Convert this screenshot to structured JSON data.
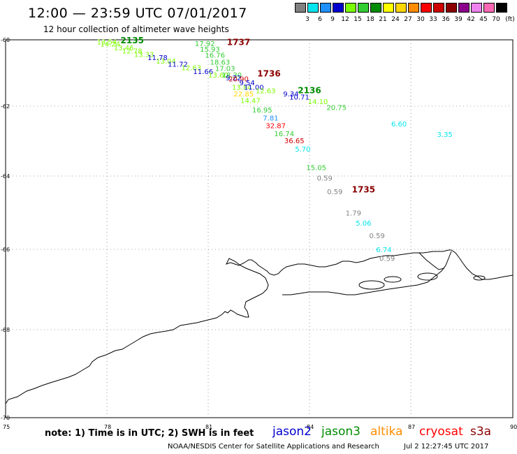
{
  "header": {
    "title": "12:00 — 23:59 UTC 07/01/2017",
    "subtitle": "12 hour collection of altimeter wave heights"
  },
  "scale": {
    "unit": "(ft)",
    "bins": [
      {
        "label": "3",
        "color": "#808080"
      },
      {
        "label": "6",
        "color": "#00e5ee"
      },
      {
        "label": "9",
        "color": "#1e90ff"
      },
      {
        "label": "12",
        "color": "#0000cd"
      },
      {
        "label": "15",
        "color": "#7cfc00"
      },
      {
        "label": "18",
        "color": "#32cd32"
      },
      {
        "label": "21",
        "color": "#008b00"
      },
      {
        "label": "24",
        "color": "#ffff00"
      },
      {
        "label": "27",
        "color": "#ffd700"
      },
      {
        "label": "30",
        "color": "#ff8c00"
      },
      {
        "label": "33",
        "color": "#ff0000"
      },
      {
        "label": "36",
        "color": "#cd0000"
      },
      {
        "label": "39",
        "color": "#8b0000"
      },
      {
        "label": "42",
        "color": "#8b008b"
      },
      {
        "label": "45",
        "color": "#ee82ee"
      },
      {
        "label": "70",
        "color": "#ff69b4"
      },
      {
        "label": "",
        "color": "#000000"
      }
    ]
  },
  "axes": {
    "lon_ticks": [
      "75",
      "78",
      "81",
      "84",
      "87",
      "90"
    ],
    "lat_ticks": [
      "-60",
      "-62",
      "-64",
      "-66",
      "-68",
      "-70"
    ]
  },
  "map_data": {
    "lon_range": [
      75,
      90
    ],
    "lat_range": [
      -60,
      -70
    ],
    "obs": [
      {
        "t": "13.54",
        "c": "#7cfc00",
        "lon": 78.0,
        "lat": -60.05
      },
      {
        "t": "14.24",
        "c": "#7cfc00",
        "lon": 78.1,
        "lat": -60.12
      },
      {
        "t": "13.46",
        "c": "#7cfc00",
        "lon": 78.5,
        "lat": -60.23
      },
      {
        "t": "12.78",
        "c": "#7cfc00",
        "lon": 78.75,
        "lat": -60.33
      },
      {
        "t": "13.33",
        "c": "#7cfc00",
        "lon": 79.1,
        "lat": -60.43
      },
      {
        "t": "11.78",
        "c": "#0000cd",
        "lon": 79.5,
        "lat": -60.53
      },
      {
        "t": "13.04",
        "c": "#7cfc00",
        "lon": 79.75,
        "lat": -60.63
      },
      {
        "t": "11.72",
        "c": "#0000cd",
        "lon": 80.1,
        "lat": -60.73
      },
      {
        "t": "12.63",
        "c": "#7cfc00",
        "lon": 80.5,
        "lat": -60.83
      },
      {
        "t": "11.66",
        "c": "#0000cd",
        "lon": 80.85,
        "lat": -60.95
      },
      {
        "t": "13.60",
        "c": "#7cfc00",
        "lon": 81.3,
        "lat": -61.05
      },
      {
        "t": "17.92",
        "c": "#32cd32",
        "lon": 80.9,
        "lat": -60.1
      },
      {
        "t": "15.93",
        "c": "#32cd32",
        "lon": 81.05,
        "lat": -60.27
      },
      {
        "t": "16.76",
        "c": "#32cd32",
        "lon": 81.2,
        "lat": -60.45
      },
      {
        "t": "18.63",
        "c": "#32cd32",
        "lon": 81.35,
        "lat": -60.66
      },
      {
        "t": "17.03",
        "c": "#32cd32",
        "lon": 81.5,
        "lat": -60.85
      },
      {
        "t": "18.30",
        "c": "#32cd32",
        "lon": 81.7,
        "lat": -61.05
      },
      {
        "t": "9.22",
        "c": "#0000cd",
        "lon": 81.75,
        "lat": -61.14
      },
      {
        "t": "20.90",
        "c": "#cd0000",
        "lon": 81.9,
        "lat": -61.17
      },
      {
        "t": "9.54",
        "c": "#0000cd",
        "lon": 82.15,
        "lat": -61.28
      },
      {
        "t": "13.84",
        "c": "#7cfc00",
        "lon": 82.0,
        "lat": -61.42
      },
      {
        "t": "11.00",
        "c": "#0000cd",
        "lon": 82.35,
        "lat": -61.42
      },
      {
        "t": "12.63",
        "c": "#7cfc00",
        "lon": 82.7,
        "lat": -61.53
      },
      {
        "t": "22.85",
        "c": "#ffd700",
        "lon": 82.05,
        "lat": -61.62
      },
      {
        "t": "9.34",
        "c": "#0000cd",
        "lon": 83.45,
        "lat": -61.62
      },
      {
        "t": "10.71",
        "c": "#0000cd",
        "lon": 83.7,
        "lat": -61.72
      },
      {
        "t": "14.47",
        "c": "#7cfc00",
        "lon": 82.25,
        "lat": -61.82
      },
      {
        "t": "14.10",
        "c": "#7cfc00",
        "lon": 84.25,
        "lat": -61.85
      },
      {
        "t": "20.75",
        "c": "#32cd32",
        "lon": 84.8,
        "lat": -62.03
      },
      {
        "t": "16.95",
        "c": "#32cd32",
        "lon": 82.6,
        "lat": -62.1
      },
      {
        "t": "7.81",
        "c": "#1e90ff",
        "lon": 82.85,
        "lat": -62.33
      },
      {
        "t": "6.60",
        "c": "#00e5ee",
        "lon": 86.65,
        "lat": -62.5
      },
      {
        "t": "32.87",
        "c": "#ff0000",
        "lon": 83.0,
        "lat": -62.55
      },
      {
        "t": "16.74",
        "c": "#32cd32",
        "lon": 83.25,
        "lat": -62.78
      },
      {
        "t": "3.35",
        "c": "#00e5ee",
        "lon": 88.0,
        "lat": -62.8
      },
      {
        "t": "36.65",
        "c": "#cd0000",
        "lon": 83.55,
        "lat": -62.98
      },
      {
        "t": "5.70",
        "c": "#00e5ee",
        "lon": 83.8,
        "lat": -63.22
      },
      {
        "t": "15.05",
        "c": "#32cd32",
        "lon": 84.2,
        "lat": -63.75
      },
      {
        "t": "0.59",
        "c": "#808080",
        "lon": 84.45,
        "lat": -64.05
      },
      {
        "t": "0.59",
        "c": "#808080",
        "lon": 84.75,
        "lat": -64.42
      },
      {
        "t": "1.79",
        "c": "#808080",
        "lon": 85.3,
        "lat": -65.0
      },
      {
        "t": "5.06",
        "c": "#00e5ee",
        "lon": 85.6,
        "lat": -65.28
      },
      {
        "t": "0.59",
        "c": "#808080",
        "lon": 86.0,
        "lat": -65.62
      },
      {
        "t": "6.74",
        "c": "#00e5ee",
        "lon": 86.2,
        "lat": -66.0
      },
      {
        "t": "0.59",
        "c": "#808080",
        "lon": 86.3,
        "lat": -66.22
      }
    ],
    "pass_labels": [
      {
        "t": "2135",
        "c": "#008b00",
        "lon": 78.75,
        "lat": -60.0
      },
      {
        "t": "1737",
        "c": "#8b0000",
        "lon": 81.9,
        "lat": -60.05
      },
      {
        "t": "1736",
        "c": "#8b0000",
        "lon": 82.8,
        "lat": -61.0
      },
      {
        "t": "2136",
        "c": "#008b00",
        "lon": 84.0,
        "lat": -61.5
      },
      {
        "t": "1735",
        "c": "#8b0000",
        "lon": 85.6,
        "lat": -64.35
      }
    ]
  },
  "footer": {
    "note": "note: 1) Time is in UTC; 2) SWH is in feet",
    "legend": [
      {
        "name": "jason2",
        "color": "#0000cd"
      },
      {
        "name": "jason3",
        "color": "#008b00"
      },
      {
        "name": "altika",
        "color": "#ff8c00"
      },
      {
        "name": "cryosat",
        "color": "#ff0000"
      },
      {
        "name": "s3a",
        "color": "#8b0000"
      }
    ],
    "credit": "NOAA/NESDIS Center for Satellite Applications and Research",
    "timestamp": "Jul  2 12:27:45 UTC 2017"
  }
}
